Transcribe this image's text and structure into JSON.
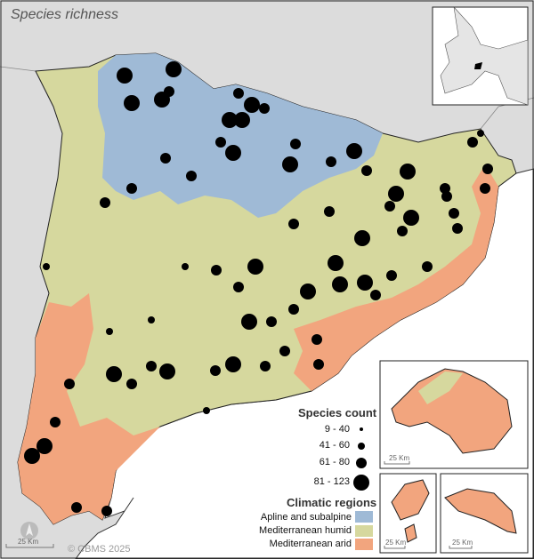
{
  "title": "Species richness",
  "legend": {
    "species_title": "Species count",
    "species_classes": [
      {
        "label": "9 - 40"
      },
      {
        "label": "41 - 60"
      },
      {
        "label": "61 - 80"
      },
      {
        "label": "81 - 123"
      }
    ],
    "climate_title": "Climatic regions",
    "climate_classes": [
      {
        "label": "Apline and subalpine",
        "color": "#9fbad6"
      },
      {
        "label": "Mediterranean humid",
        "color": "#d6d89e"
      },
      {
        "label": "Mediterranean arid",
        "color": "#f2a57e"
      }
    ]
  },
  "scale_bars": {
    "main": "25 Km",
    "mallorca": "25 Km",
    "ibiza": "25 Km",
    "menorca": "25 Km"
  },
  "copyright": "© CBMS 2025",
  "colors": {
    "background": "#dcdcdc",
    "sea": "#ffffff",
    "site_marker": "#000000"
  }
}
